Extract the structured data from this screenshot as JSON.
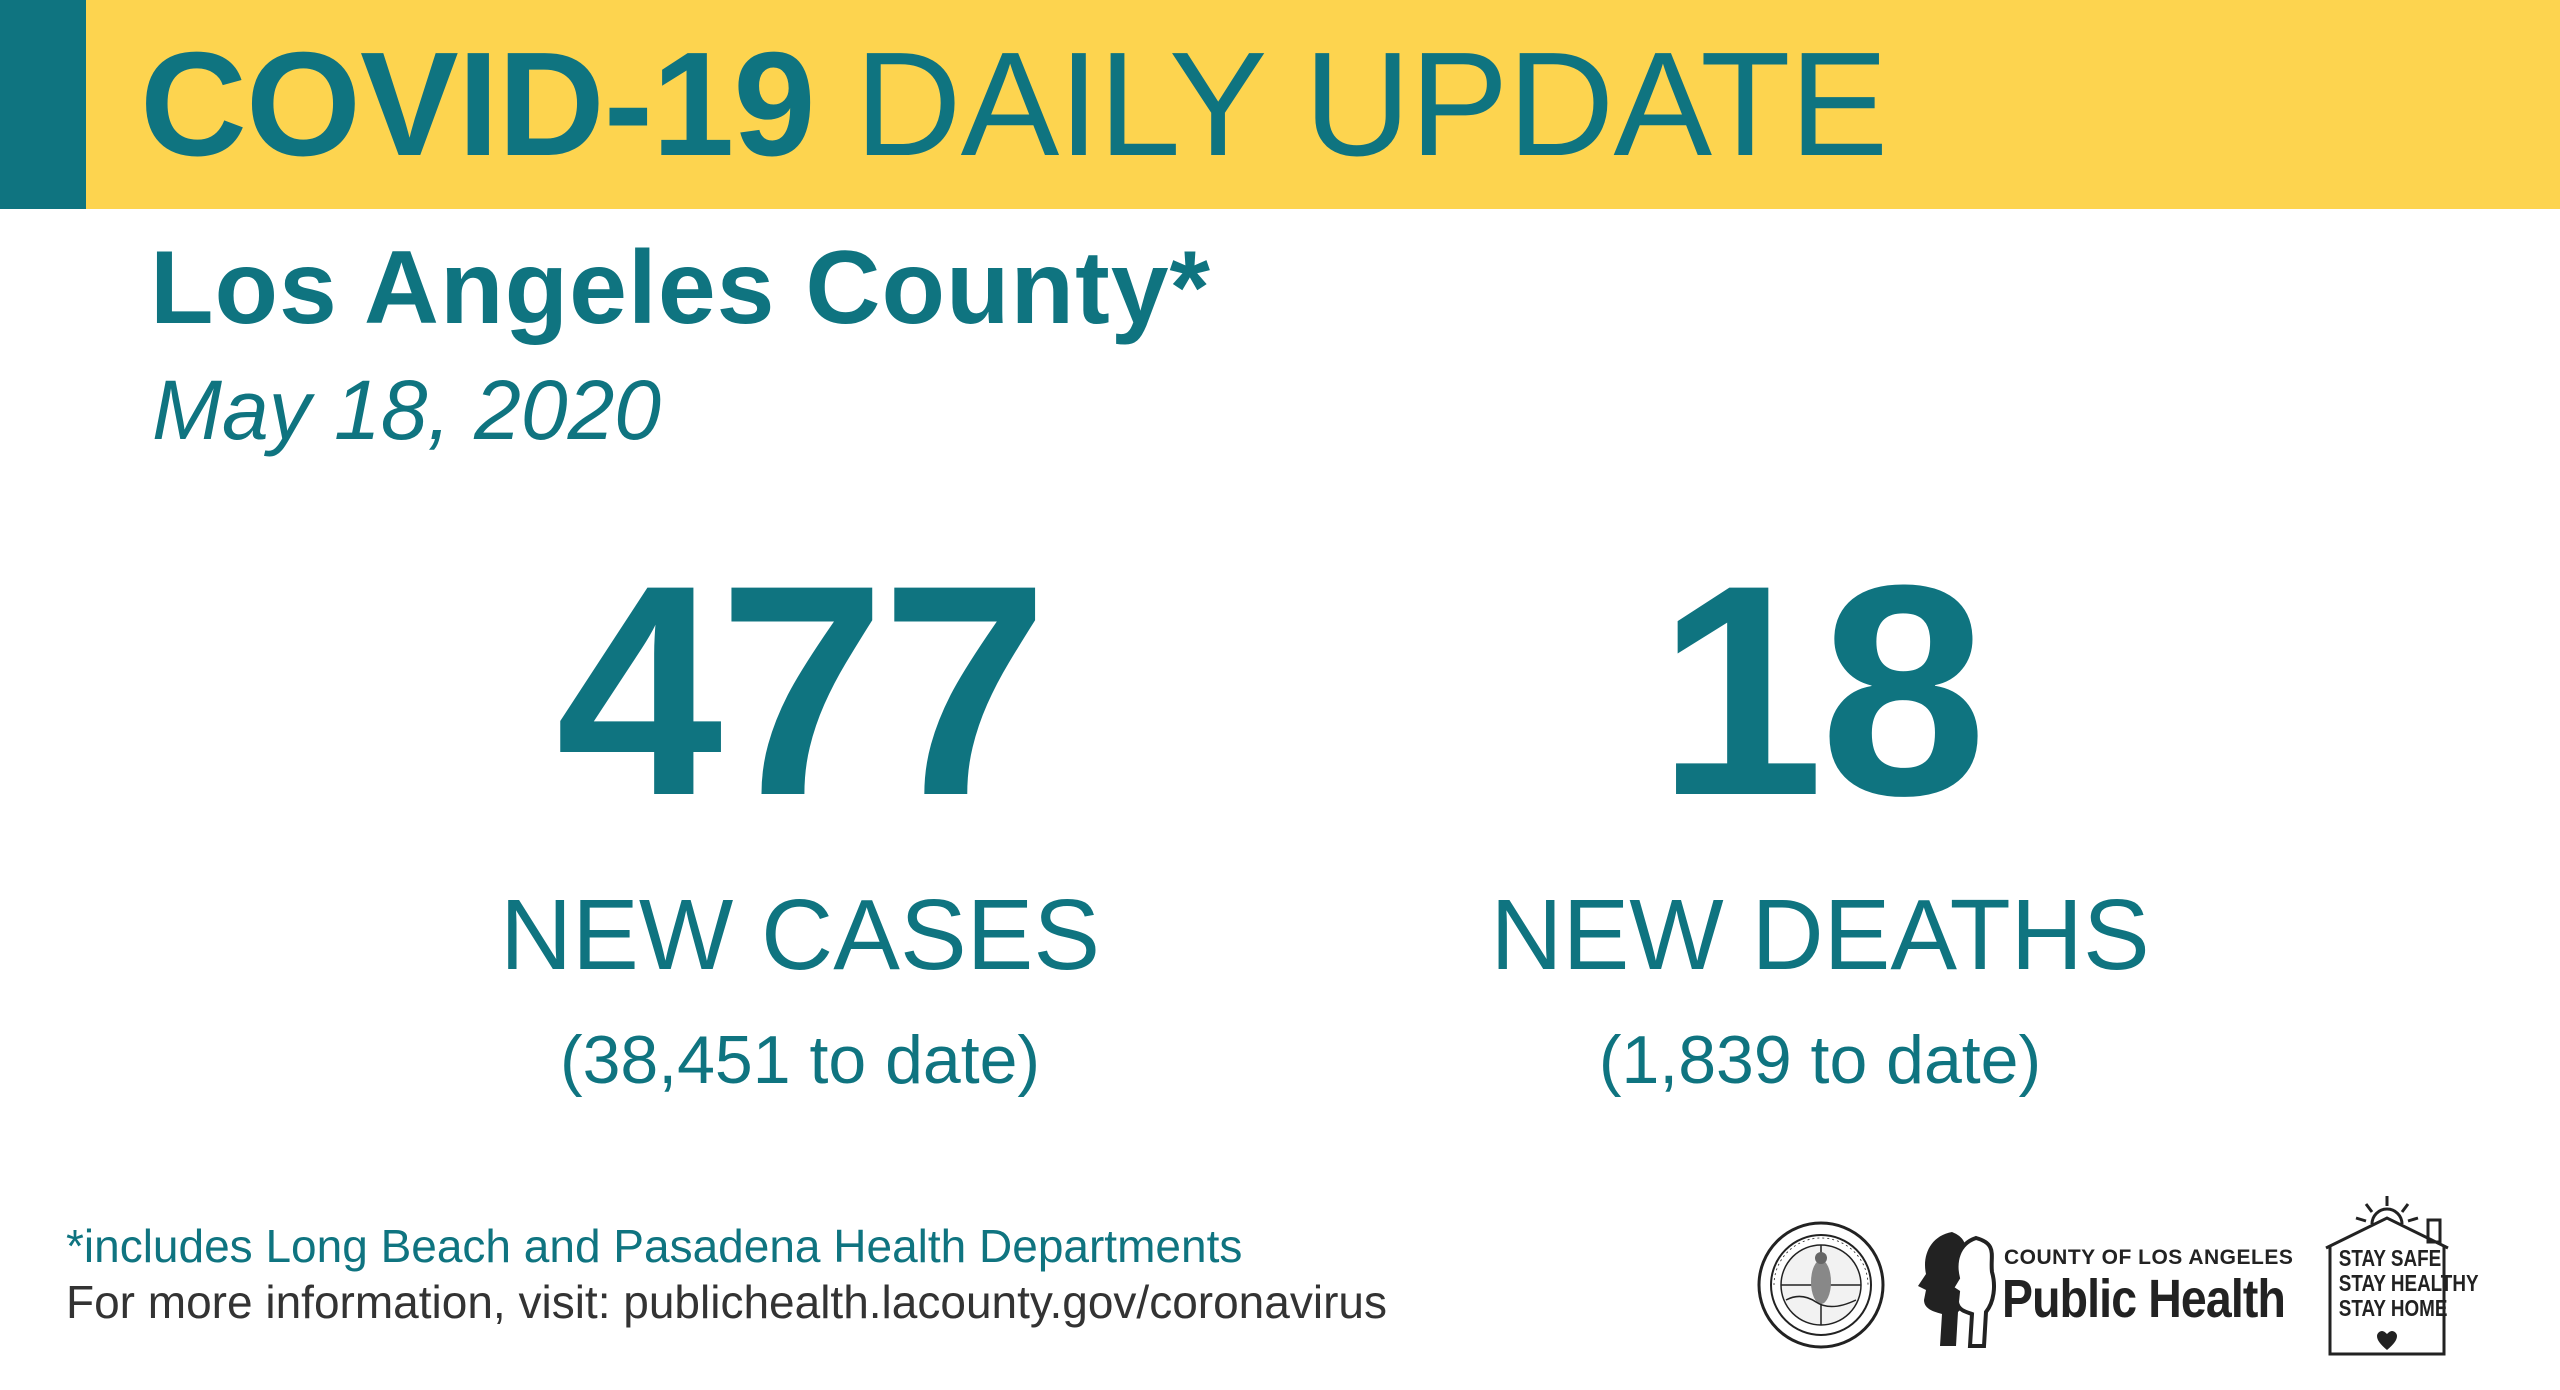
{
  "banner": {
    "title_bold": "COVID-19",
    "title_light": " DAILY UPDATE"
  },
  "header": {
    "county": "Los Angeles County*",
    "date": "May 18, 2020"
  },
  "stats": {
    "cases": {
      "value": "477",
      "label": "NEW CASES",
      "to_date": "(38,451 to date)"
    },
    "deaths": {
      "value": "18",
      "label": "NEW DEATHS",
      "to_date": "(1,839 to date)"
    }
  },
  "footer": {
    "footnote": "*includes Long Beach and Pasadena Health Departments",
    "more_info": "For more information, visit: publichealth.lacounty.gov/coronavirus"
  },
  "logos": {
    "seal_text": "COUNTY OF LOS ANGELES · CALIFORNIA",
    "public_health_small": "COUNTY OF LOS ANGELES",
    "public_health_big": "Public Health",
    "stay_lines": [
      "STAY SAFE",
      "STAY HEALTHY",
      "STAY HOME"
    ]
  },
  "colors": {
    "teal": "#0f7480",
    "yellow": "#fdd44f",
    "dark_text": "#333333"
  }
}
